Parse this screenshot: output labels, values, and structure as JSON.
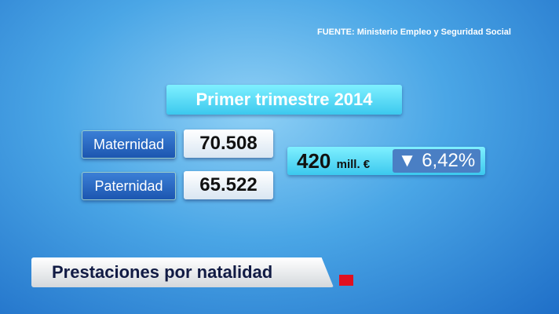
{
  "source": "FUENTE: Ministerio Empleo y Seguridad Social",
  "title": "Primer trimestre 2014",
  "rows": [
    {
      "label": "Maternidad",
      "value": "70.508"
    },
    {
      "label": "Paternidad",
      "value": "65.522"
    }
  ],
  "amount": {
    "value": "420",
    "unit": "mill. €"
  },
  "change": {
    "direction": "down",
    "icon": "▼",
    "value": "6,42%"
  },
  "headline": "Prestaciones por natalidad",
  "colors": {
    "accent": "#3cc8ee",
    "label": "#1c56b0",
    "alert": "#e01020"
  }
}
